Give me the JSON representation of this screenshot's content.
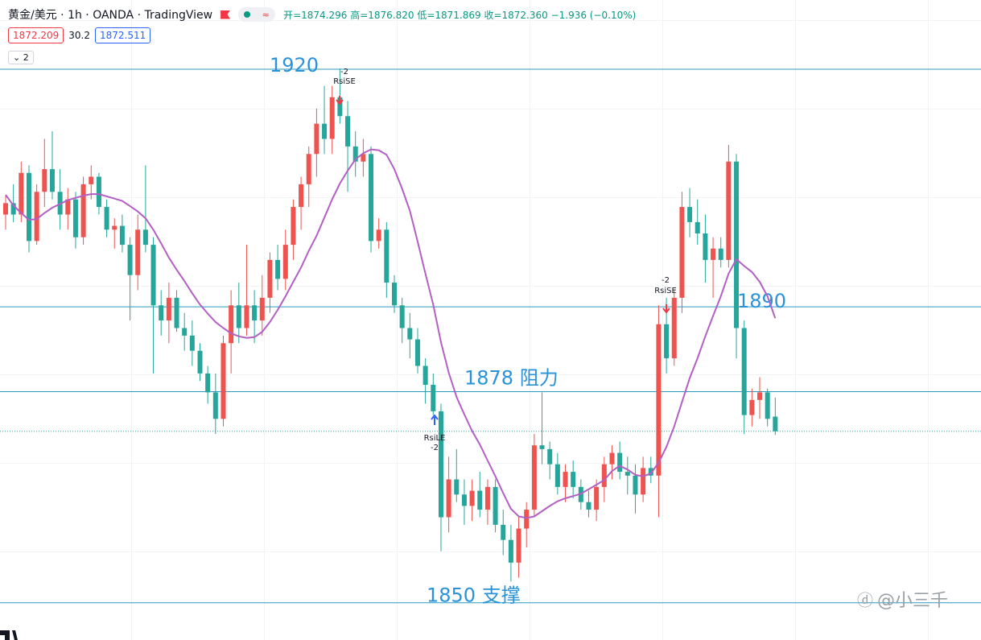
{
  "header": {
    "title": "黄金/美元 · 1h · OANDA · TradingView",
    "ohlc": "开=1874.296 高=1876.820 低=1871.869 收=1872.360 −1.936 (−0.10%)",
    "bid": "1872.209",
    "spread": "30.2",
    "ask": "1872.511",
    "indicators": "2"
  },
  "chart_data": {
    "type": "candlestick",
    "up_color": "#ef5350",
    "down_color": "#26a69a",
    "ylim": [
      1844.775,
      1929.35
    ],
    "candles": [
      [
        1901,
        1903.5,
        1899,
        1902.5
      ],
      [
        1902.5,
        1905,
        1900,
        1901
      ],
      [
        1901,
        1908,
        1900,
        1906.5
      ],
      [
        1906.5,
        1907.5,
        1896,
        1897.5
      ],
      [
        1897.5,
        1905,
        1897,
        1904
      ],
      [
        1904,
        1911,
        1902,
        1907
      ],
      [
        1907,
        1912,
        1903,
        1904
      ],
      [
        1904,
        1907,
        1899,
        1901
      ],
      [
        1901,
        1904.5,
        1899,
        1903
      ],
      [
        1903,
        1904,
        1896.5,
        1898
      ],
      [
        1898,
        1906,
        1897,
        1905
      ],
      [
        1905,
        1907.5,
        1903,
        1906
      ],
      [
        1906,
        1906.5,
        1901,
        1902
      ],
      [
        1902,
        1903,
        1898,
        1899
      ],
      [
        1899,
        1900.5,
        1896.5,
        1899.5
      ],
      [
        1899.5,
        1901,
        1896,
        1897
      ],
      [
        1897,
        1898,
        1887,
        1893
      ],
      [
        1893,
        1901,
        1891,
        1899
      ],
      [
        1899,
        1907.5,
        1896,
        1897
      ],
      [
        1897,
        1898,
        1880,
        1889
      ],
      [
        1889,
        1891,
        1885,
        1887
      ],
      [
        1887,
        1892,
        1884,
        1890
      ],
      [
        1890,
        1891,
        1885.5,
        1886
      ],
      [
        1886,
        1888,
        1883,
        1885
      ],
      [
        1885,
        1887,
        1881,
        1883
      ],
      [
        1883,
        1884,
        1879,
        1880
      ],
      [
        1880,
        1881,
        1876,
        1877.5
      ],
      [
        1877.5,
        1880,
        1872,
        1874
      ],
      [
        1874,
        1885,
        1873,
        1884
      ],
      [
        1884,
        1891,
        1880,
        1889
      ],
      [
        1889,
        1892,
        1884,
        1886
      ],
      [
        1886,
        1897,
        1885,
        1889
      ],
      [
        1889,
        1891,
        1884,
        1887
      ],
      [
        1887,
        1893,
        1885,
        1890
      ],
      [
        1890,
        1896,
        1888,
        1895
      ],
      [
        1895,
        1897,
        1891,
        1892.5
      ],
      [
        1892.5,
        1899,
        1891,
        1897
      ],
      [
        1897,
        1903,
        1895,
        1902
      ],
      [
        1902,
        1906,
        1899,
        1905
      ],
      [
        1905,
        1910,
        1902,
        1909
      ],
      [
        1909,
        1915,
        1906,
        1913
      ],
      [
        1913,
        1918,
        1909,
        1911
      ],
      [
        1911,
        1918,
        1909,
        1916.5
      ],
      [
        1916.5,
        1920.3,
        1913,
        1914
      ],
      [
        1914,
        1916,
        1904,
        1910
      ],
      [
        1910,
        1912,
        1906,
        1908
      ],
      [
        1908,
        1911,
        1906,
        1909
      ],
      [
        1909,
        1910,
        1896,
        1897.5
      ],
      [
        1897.5,
        1900.5,
        1896.5,
        1899
      ],
      [
        1899,
        1900,
        1890,
        1892
      ],
      [
        1892,
        1893,
        1888,
        1889
      ],
      [
        1889,
        1890,
        1884,
        1886
      ],
      [
        1886,
        1888,
        1882,
        1884.5
      ],
      [
        1884.5,
        1886,
        1880,
        1881
      ],
      [
        1881,
        1882,
        1876,
        1878.5
      ],
      [
        1878.5,
        1880,
        1874.5,
        1875
      ],
      [
        1875,
        1876,
        1856.5,
        1861
      ],
      [
        1861,
        1869,
        1859,
        1866
      ],
      [
        1866,
        1870,
        1863,
        1864
      ],
      [
        1864,
        1866,
        1860,
        1862.5
      ],
      [
        1862.5,
        1866,
        1860.5,
        1864.5
      ],
      [
        1864.5,
        1867,
        1861,
        1862
      ],
      [
        1862,
        1866,
        1860,
        1865
      ],
      [
        1865,
        1866,
        1859,
        1860
      ],
      [
        1860,
        1862,
        1856,
        1858
      ],
      [
        1858,
        1860,
        1852.5,
        1855
      ],
      [
        1855,
        1861,
        1853,
        1859.5
      ],
      [
        1859.5,
        1863,
        1857,
        1862
      ],
      [
        1862,
        1872,
        1861,
        1870.5
      ],
      [
        1870.5,
        1877.5,
        1868,
        1870
      ],
      [
        1870,
        1871,
        1866,
        1868
      ],
      [
        1868,
        1869.5,
        1864,
        1865
      ],
      [
        1865,
        1868,
        1863,
        1867
      ],
      [
        1867,
        1868.5,
        1863.5,
        1865
      ],
      [
        1865,
        1866,
        1862,
        1863
      ],
      [
        1863,
        1864.5,
        1861,
        1862
      ],
      [
        1862,
        1866,
        1860.5,
        1865
      ],
      [
        1865,
        1869,
        1863,
        1868
      ],
      [
        1868,
        1870.5,
        1866,
        1869.5
      ],
      [
        1869.5,
        1871,
        1866,
        1867
      ],
      [
        1867,
        1869,
        1864,
        1866.5
      ],
      [
        1866.5,
        1868,
        1861.5,
        1864
      ],
      [
        1864,
        1869,
        1863,
        1867.5
      ],
      [
        1867.5,
        1869,
        1865.5,
        1866.5
      ],
      [
        1866.5,
        1889,
        1861,
        1886.5
      ],
      [
        1886.5,
        1890,
        1880,
        1882
      ],
      [
        1882,
        1891,
        1881,
        1890
      ],
      [
        1890,
        1904,
        1888,
        1902
      ],
      [
        1902,
        1904.5,
        1898,
        1900
      ],
      [
        1900,
        1903,
        1897,
        1898.5
      ],
      [
        1898.5,
        1901,
        1892,
        1895
      ],
      [
        1895,
        1898,
        1890,
        1896.5
      ],
      [
        1896.5,
        1898,
        1894,
        1895
      ],
      [
        1895,
        1910.2,
        1894,
        1908
      ],
      [
        1908,
        1909,
        1882,
        1886
      ],
      [
        1886,
        1887,
        1872,
        1874.5
      ],
      [
        1874.5,
        1878,
        1873,
        1876.5
      ],
      [
        1876.5,
        1879.5,
        1874,
        1877.5
      ],
      [
        1877.5,
        1878,
        1873,
        1874
      ],
      [
        1874.296,
        1876.82,
        1871.869,
        1872.36
      ]
    ],
    "ma": {
      "color": "#b35fc4",
      "values": [
        1903.6,
        1902.2,
        1901.2,
        1900.3,
        1900.4,
        1901.2,
        1901.9,
        1902.4,
        1902.9,
        1903.2,
        1903.5,
        1903.7,
        1903.7,
        1903.4,
        1903.1,
        1902.8,
        1902.1,
        1901.4,
        1900.5,
        1899.0,
        1897.2,
        1895.3,
        1893.7,
        1892.2,
        1890.6,
        1889.1,
        1887.9,
        1886.8,
        1886.0,
        1885.3,
        1884.9,
        1884.7,
        1884.8,
        1885.5,
        1886.8,
        1888.4,
        1890.2,
        1892.1,
        1894.0,
        1896.2,
        1898.2,
        1900.6,
        1903.0,
        1905.1,
        1906.8,
        1908.3,
        1909.1,
        1909.6,
        1909.5,
        1908.9,
        1907.0,
        1904.4,
        1901.5,
        1897.4,
        1893.2,
        1889.1,
        1884.1,
        1880.1,
        1876.9,
        1874.6,
        1872.4,
        1870.6,
        1868.5,
        1866.4,
        1864.2,
        1862.1,
        1861.1,
        1860.9,
        1861.1,
        1861.8,
        1862.5,
        1863.1,
        1863.5,
        1863.8,
        1864.1,
        1864.7,
        1865.3,
        1865.9,
        1867.1,
        1867.8,
        1867.3,
        1866.6,
        1866.4,
        1866.8,
        1868.2,
        1870.3,
        1873.0,
        1876.2,
        1879.4,
        1882.0,
        1884.9,
        1887.6,
        1890.2,
        1893.2,
        1895.1,
        1894.2,
        1893.4,
        1892.1,
        1890.2,
        1887.3
      ]
    },
    "levels": [
      {
        "value": 1920.2,
        "label": "1920"
      },
      {
        "value": 1888.8,
        "label": "1890"
      },
      {
        "value": 1877.6,
        "label": "1878 阻力"
      },
      {
        "value": 1849.7,
        "label": "1850 支撑"
      }
    ],
    "level_color": "#2b9ac0",
    "last_price": 1872.36,
    "signals": [
      {
        "qty": "-2",
        "name": "RsiSE"
      },
      {
        "qty": "-2",
        "name": "RsiSE"
      },
      {
        "name": "RsiLE",
        "qty": "-2"
      }
    ]
  },
  "watermark": "@小三千"
}
